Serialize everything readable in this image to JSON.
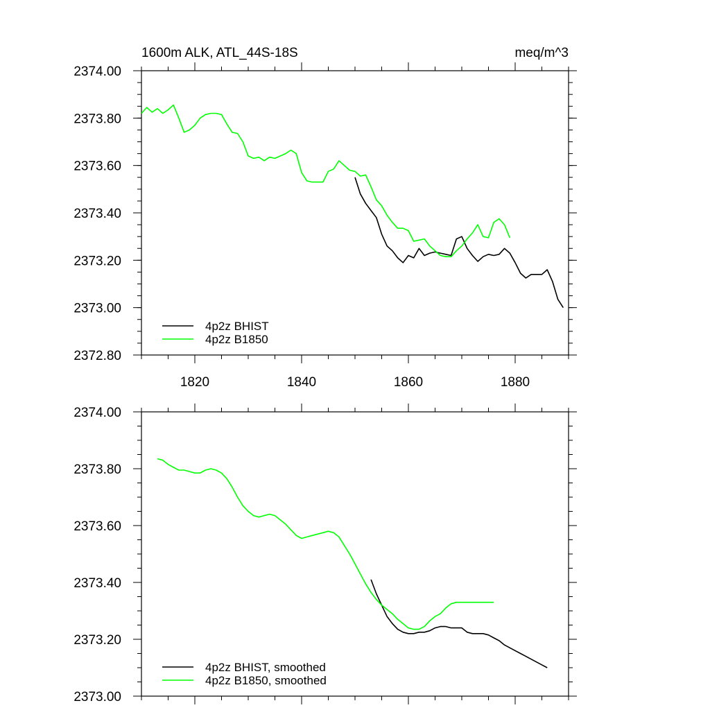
{
  "chart_data": [
    {
      "type": "line",
      "title_left": "1600m ALK, ATL_44S-18S",
      "title_right": "meq/m^3",
      "xlim": [
        1810,
        1890
      ],
      "ylim": [
        2372.8,
        2374.0
      ],
      "yticks": [
        2372.8,
        2373.0,
        2373.2,
        2373.4,
        2373.6,
        2373.8,
        2374.0
      ],
      "ytick_labels": [
        "2372.80",
        "2373.00",
        "2373.20",
        "2373.40",
        "2373.60",
        "2373.80",
        "2374.00"
      ],
      "xticks": [
        1820,
        1840,
        1860,
        1880
      ],
      "xtick_labels": [
        "1820",
        "1840",
        "1860",
        "1880"
      ],
      "legend_position": "bottom-left",
      "series": [
        {
          "name": "4p2z BHIST",
          "color": "#000000",
          "x": [
            1850,
            1851,
            1852,
            1853,
            1854,
            1855,
            1856,
            1857,
            1858,
            1859,
            1860,
            1861,
            1862,
            1863,
            1864,
            1865,
            1866,
            1867,
            1868,
            1869,
            1870,
            1871,
            1872,
            1873,
            1874,
            1875,
            1876,
            1877,
            1878,
            1879,
            1880,
            1881,
            1882,
            1883,
            1884,
            1885,
            1886,
            1887,
            1888,
            1889
          ],
          "y": [
            2373.55,
            2373.48,
            2373.44,
            2373.41,
            2373.38,
            2373.31,
            2373.26,
            2373.24,
            2373.21,
            2373.19,
            2373.22,
            2373.21,
            2373.25,
            2373.22,
            2373.23,
            2373.235,
            2373.23,
            2373.225,
            2373.22,
            2373.29,
            2373.3,
            2373.25,
            2373.22,
            2373.195,
            2373.215,
            2373.225,
            2373.22,
            2373.225,
            2373.25,
            2373.23,
            2373.19,
            2373.145,
            2373.125,
            2373.14,
            2373.14,
            2373.14,
            2373.16,
            2373.11,
            2373.035,
            2373.0
          ]
        },
        {
          "name": "4p2z B1850",
          "color": "#00ff00",
          "x": [
            1810,
            1811,
            1812,
            1813,
            1814,
            1815,
            1816,
            1817,
            1818,
            1819,
            1820,
            1821,
            1822,
            1823,
            1824,
            1825,
            1826,
            1827,
            1828,
            1829,
            1830,
            1831,
            1832,
            1833,
            1834,
            1835,
            1836,
            1837,
            1838,
            1839,
            1840,
            1841,
            1842,
            1843,
            1844,
            1845,
            1846,
            1847,
            1848,
            1849,
            1850,
            1851,
            1852,
            1853,
            1854,
            1855,
            1856,
            1857,
            1858,
            1859,
            1860,
            1861,
            1862,
            1863,
            1864,
            1865,
            1866,
            1867,
            1868,
            1869,
            1870,
            1871,
            1872,
            1873,
            1874,
            1875,
            1876,
            1877,
            1878,
            1879
          ],
          "y": [
            2373.82,
            2373.845,
            2373.825,
            2373.84,
            2373.82,
            2373.835,
            2373.855,
            2373.8,
            2373.74,
            2373.75,
            2373.77,
            2373.8,
            2373.815,
            2373.82,
            2373.82,
            2373.815,
            2373.775,
            2373.74,
            2373.735,
            2373.7,
            2373.64,
            2373.63,
            2373.635,
            2373.62,
            2373.635,
            2373.63,
            2373.64,
            2373.65,
            2373.665,
            2373.65,
            2373.57,
            2373.535,
            2373.53,
            2373.53,
            2373.53,
            2373.575,
            2373.585,
            2373.62,
            2373.6,
            2373.58,
            2373.575,
            2373.555,
            2373.56,
            2373.51,
            2373.455,
            2373.43,
            2373.39,
            2373.36,
            2373.335,
            2373.335,
            2373.325,
            2373.28,
            2373.285,
            2373.29,
            2373.26,
            2373.24,
            2373.22,
            2373.215,
            2373.215,
            2373.24,
            2373.26,
            2373.29,
            2373.315,
            2373.35,
            2373.3,
            2373.295,
            2373.36,
            2373.375,
            2373.35,
            2373.295
          ]
        }
      ]
    },
    {
      "type": "line",
      "xlim": [
        1810,
        1890
      ],
      "ylim": [
        2373.0,
        2374.0
      ],
      "yticks": [
        2373.0,
        2373.2,
        2373.4,
        2373.6,
        2373.8,
        2374.0
      ],
      "ytick_labels": [
        "2373.00",
        "2373.20",
        "2373.40",
        "2373.60",
        "2373.80",
        "2374.00"
      ],
      "xticks": [
        1820,
        1840,
        1860,
        1880
      ],
      "legend_position": "bottom-left",
      "series": [
        {
          "name": "4p2z BHIST, smoothed",
          "color": "#000000",
          "x": [
            1853,
            1854,
            1855,
            1856,
            1857,
            1858,
            1859,
            1860,
            1861,
            1862,
            1863,
            1864,
            1865,
            1866,
            1867,
            1868,
            1869,
            1870,
            1871,
            1872,
            1873,
            1874,
            1875,
            1876,
            1877,
            1878,
            1879,
            1880,
            1881,
            1882,
            1883,
            1884,
            1885,
            1886
          ],
          "y": [
            2373.41,
            2373.36,
            2373.32,
            2373.28,
            2373.255,
            2373.235,
            2373.225,
            2373.22,
            2373.22,
            2373.225,
            2373.225,
            2373.23,
            2373.24,
            2373.245,
            2373.245,
            2373.24,
            2373.24,
            2373.24,
            2373.225,
            2373.22,
            2373.22,
            2373.22,
            2373.215,
            2373.205,
            2373.195,
            2373.18,
            2373.17,
            2373.16,
            2373.15,
            2373.14,
            2373.13,
            2373.12,
            2373.11,
            2373.1
          ]
        },
        {
          "name": "4p2z B1850, smoothed",
          "color": "#00ff00",
          "x": [
            1813,
            1814,
            1815,
            1816,
            1817,
            1818,
            1819,
            1820,
            1821,
            1822,
            1823,
            1824,
            1825,
            1826,
            1827,
            1828,
            1829,
            1830,
            1831,
            1832,
            1833,
            1834,
            1835,
            1836,
            1837,
            1838,
            1839,
            1840,
            1841,
            1842,
            1843,
            1844,
            1845,
            1846,
            1847,
            1848,
            1849,
            1850,
            1851,
            1852,
            1853,
            1854,
            1855,
            1856,
            1857,
            1858,
            1859,
            1860,
            1861,
            1862,
            1863,
            1864,
            1865,
            1866,
            1867,
            1868,
            1869,
            1870,
            1871,
            1872,
            1873,
            1874,
            1875,
            1876
          ],
          "y": [
            2373.835,
            2373.83,
            2373.815,
            2373.805,
            2373.795,
            2373.795,
            2373.79,
            2373.785,
            2373.785,
            2373.795,
            2373.8,
            2373.795,
            2373.785,
            2373.765,
            2373.735,
            2373.7,
            2373.67,
            2373.65,
            2373.635,
            2373.63,
            2373.635,
            2373.64,
            2373.635,
            2373.62,
            2373.605,
            2373.585,
            2373.565,
            2373.555,
            2373.56,
            2373.565,
            2373.57,
            2373.575,
            2373.58,
            2373.575,
            2373.56,
            2373.53,
            2373.5,
            2373.465,
            2373.43,
            2373.395,
            2373.365,
            2373.34,
            2373.32,
            2373.305,
            2373.29,
            2373.27,
            2373.255,
            2373.24,
            2373.235,
            2373.235,
            2373.245,
            2373.265,
            2373.28,
            2373.29,
            2373.31,
            2373.325,
            2373.33,
            2373.33,
            2373.33,
            2373.33,
            2373.33,
            2373.33,
            2373.33,
            2373.33
          ]
        }
      ]
    }
  ]
}
